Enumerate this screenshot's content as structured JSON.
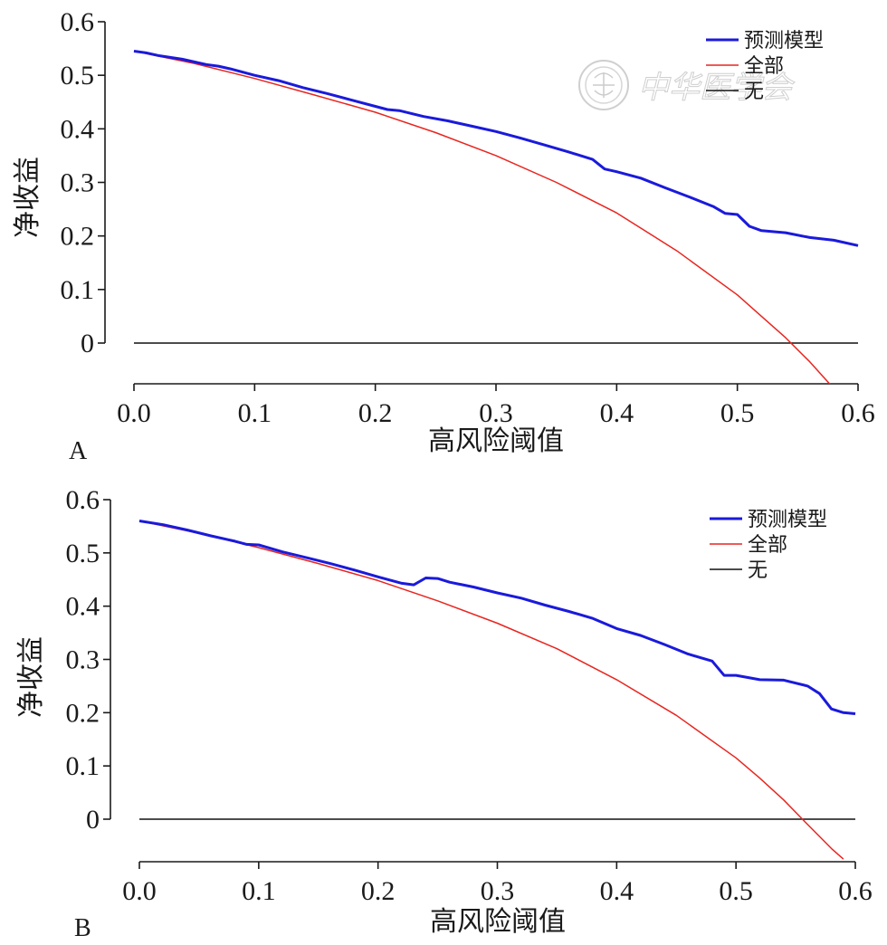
{
  "colors": {
    "model": "#1a1adc",
    "all": "#e8251f",
    "none": "#111111",
    "axis": "#1a1a1a"
  },
  "watermark": {
    "icon": "society-seal-icon",
    "text": "中华医学会"
  },
  "chart_data": [
    {
      "panel_label": "A",
      "type": "line",
      "xlabel": "高风险阈值",
      "ylabel": "净收益",
      "xlim": [
        0,
        0.6
      ],
      "ylim": [
        -0.08,
        0.6
      ],
      "xticks": [
        "0.0",
        "0.1",
        "0.2",
        "0.3",
        "0.4",
        "0.5",
        "0.6"
      ],
      "yticks": [
        "0",
        "0.1",
        "0.2",
        "0.3",
        "0.4",
        "0.5",
        "0.6"
      ],
      "legend_position": "top-right",
      "series": [
        {
          "name": "预测模型",
          "color_key": "model",
          "width": 3,
          "x": [
            0.0,
            0.01,
            0.02,
            0.04,
            0.06,
            0.07,
            0.08,
            0.1,
            0.12,
            0.14,
            0.16,
            0.18,
            0.2,
            0.21,
            0.22,
            0.24,
            0.26,
            0.28,
            0.3,
            0.32,
            0.34,
            0.36,
            0.38,
            0.39,
            0.4,
            0.42,
            0.44,
            0.46,
            0.48,
            0.49,
            0.5,
            0.51,
            0.52,
            0.54,
            0.56,
            0.58,
            0.6
          ],
          "y": [
            0.545,
            0.542,
            0.537,
            0.53,
            0.52,
            0.517,
            0.512,
            0.5,
            0.49,
            0.477,
            0.466,
            0.454,
            0.442,
            0.436,
            0.434,
            0.423,
            0.415,
            0.405,
            0.395,
            0.383,
            0.37,
            0.357,
            0.343,
            0.325,
            0.32,
            0.308,
            0.29,
            0.273,
            0.255,
            0.242,
            0.24,
            0.218,
            0.21,
            0.206,
            0.197,
            0.192,
            0.182
          ]
        },
        {
          "name": "全部",
          "color_key": "all",
          "width": 1.5,
          "x": [
            0.0,
            0.05,
            0.1,
            0.15,
            0.2,
            0.25,
            0.3,
            0.35,
            0.4,
            0.45,
            0.5,
            0.52,
            0.54,
            0.56,
            0.58
          ],
          "y": [
            0.545,
            0.522,
            0.494,
            0.463,
            0.431,
            0.393,
            0.35,
            0.3,
            0.243,
            0.172,
            0.09,
            0.05,
            0.01,
            -0.035,
            -0.085
          ]
        },
        {
          "name": "无",
          "color_key": "none",
          "width": 1.5,
          "x": [
            0.0,
            0.6
          ],
          "y": [
            0,
            0
          ]
        }
      ]
    },
    {
      "panel_label": "B",
      "type": "line",
      "xlabel": "高风险阈值",
      "ylabel": "净收益",
      "xlim": [
        0,
        0.6
      ],
      "ylim": [
        -0.08,
        0.6
      ],
      "xticks": [
        "0.0",
        "0.1",
        "0.2",
        "0.3",
        "0.4",
        "0.5",
        "0.6"
      ],
      "yticks": [
        "0",
        "0.1",
        "0.2",
        "0.3",
        "0.4",
        "0.5",
        "0.6"
      ],
      "legend_position": "top-right",
      "series": [
        {
          "name": "预测模型",
          "color_key": "model",
          "width": 3,
          "x": [
            0.0,
            0.02,
            0.04,
            0.06,
            0.08,
            0.09,
            0.1,
            0.12,
            0.14,
            0.16,
            0.18,
            0.2,
            0.22,
            0.23,
            0.24,
            0.25,
            0.26,
            0.28,
            0.3,
            0.32,
            0.34,
            0.36,
            0.38,
            0.4,
            0.42,
            0.44,
            0.46,
            0.48,
            0.49,
            0.5,
            0.52,
            0.54,
            0.56,
            0.57,
            0.58,
            0.59,
            0.6
          ],
          "y": [
            0.56,
            0.553,
            0.543,
            0.532,
            0.522,
            0.516,
            0.515,
            0.502,
            0.491,
            0.48,
            0.468,
            0.455,
            0.443,
            0.44,
            0.453,
            0.452,
            0.445,
            0.436,
            0.425,
            0.415,
            0.402,
            0.39,
            0.377,
            0.358,
            0.345,
            0.328,
            0.31,
            0.297,
            0.27,
            0.27,
            0.262,
            0.261,
            0.25,
            0.236,
            0.207,
            0.2,
            0.198
          ]
        },
        {
          "name": "全部",
          "color_key": "all",
          "width": 1.5,
          "x": [
            0.0,
            0.05,
            0.1,
            0.15,
            0.2,
            0.25,
            0.3,
            0.35,
            0.4,
            0.45,
            0.5,
            0.52,
            0.54,
            0.56,
            0.58,
            0.59
          ],
          "y": [
            0.56,
            0.537,
            0.51,
            0.48,
            0.448,
            0.41,
            0.368,
            0.32,
            0.262,
            0.195,
            0.115,
            0.077,
            0.036,
            -0.01,
            -0.055,
            -0.075
          ]
        },
        {
          "name": "无",
          "color_key": "none",
          "width": 1.5,
          "x": [
            0.0,
            0.6
          ],
          "y": [
            0,
            0
          ]
        }
      ]
    }
  ]
}
